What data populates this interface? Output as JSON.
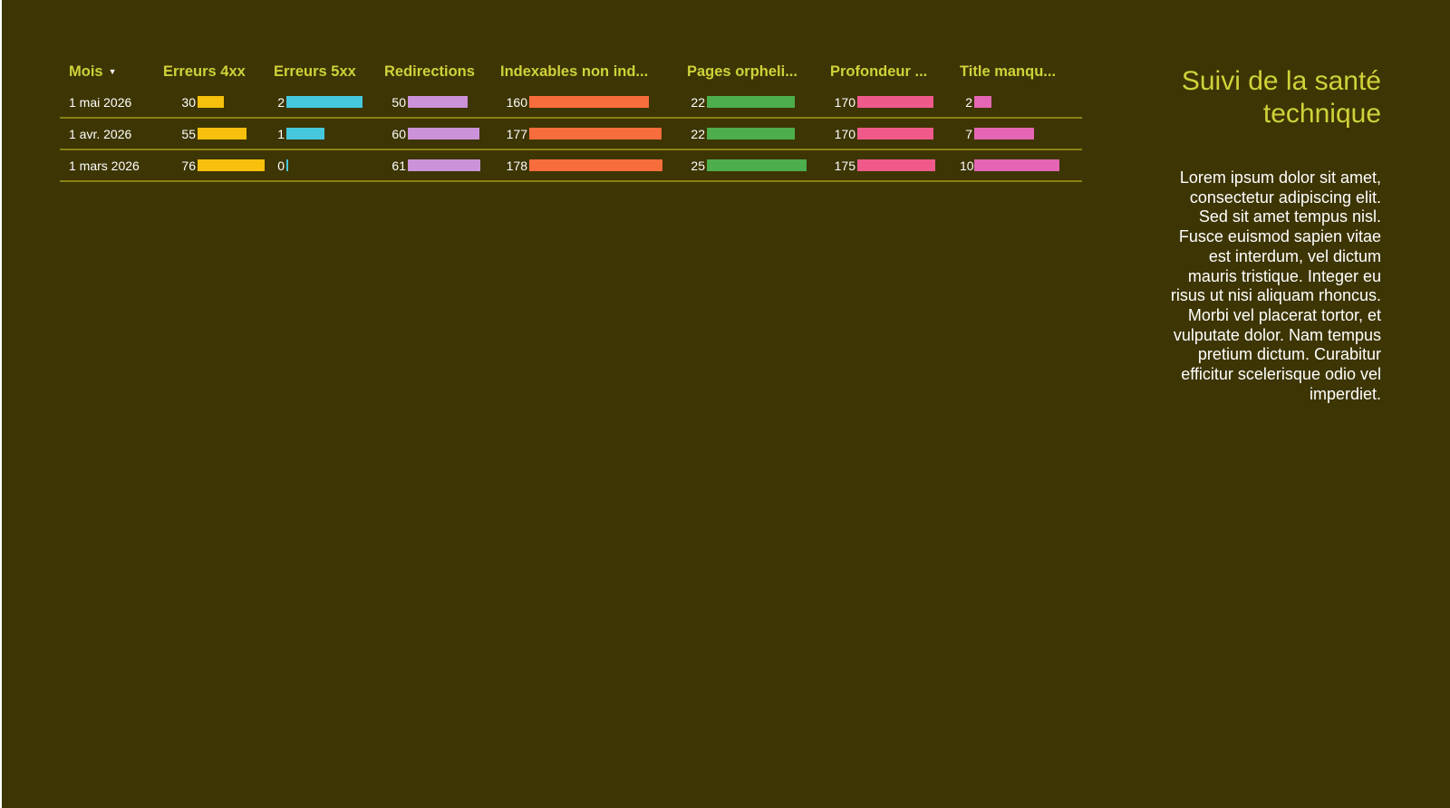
{
  "chart_data": {
    "type": "table",
    "columns": [
      {
        "label": "Mois",
        "sorted": "desc"
      },
      {
        "label": "Erreurs 4xx",
        "color": "#f6c00c"
      },
      {
        "label": "Erreurs 5xx",
        "color": "#45c8dd"
      },
      {
        "label": "Redirections",
        "color": "#cc92d9"
      },
      {
        "label": "Indexables non ind...",
        "color": "#f86d3c"
      },
      {
        "label": "Pages orpheli...",
        "color": "#4cae4c"
      },
      {
        "label": "Profondeur ...",
        "color": "#ef5a8b"
      },
      {
        "label": "Title manqu...",
        "color": "#e466b5"
      }
    ],
    "rows": [
      {
        "month": "1 mai 2026",
        "values": [
          30,
          2,
          50,
          160,
          22,
          170,
          2
        ]
      },
      {
        "month": "1 avr. 2026",
        "values": [
          55,
          1,
          60,
          177,
          22,
          170,
          7
        ]
      },
      {
        "month": "1 mars 2026",
        "values": [
          76,
          0,
          61,
          178,
          25,
          175,
          10
        ]
      }
    ]
  },
  "panel": {
    "title": "Suivi de la santé technique",
    "description": "Lorem ipsum dolor sit amet, consectetur adipiscing elit. Sed sit amet tempus nisl. Fusce euismod sapien vitae est interdum, vel dictum mauris tristique. Integer eu risus ut nisi aliquam rhoncus. Morbi vel placerat tortor, et vulputate dolor. Nam tempus pretium dictum. Curabitur efficitur scelerisque odio vel imperdiet."
  }
}
